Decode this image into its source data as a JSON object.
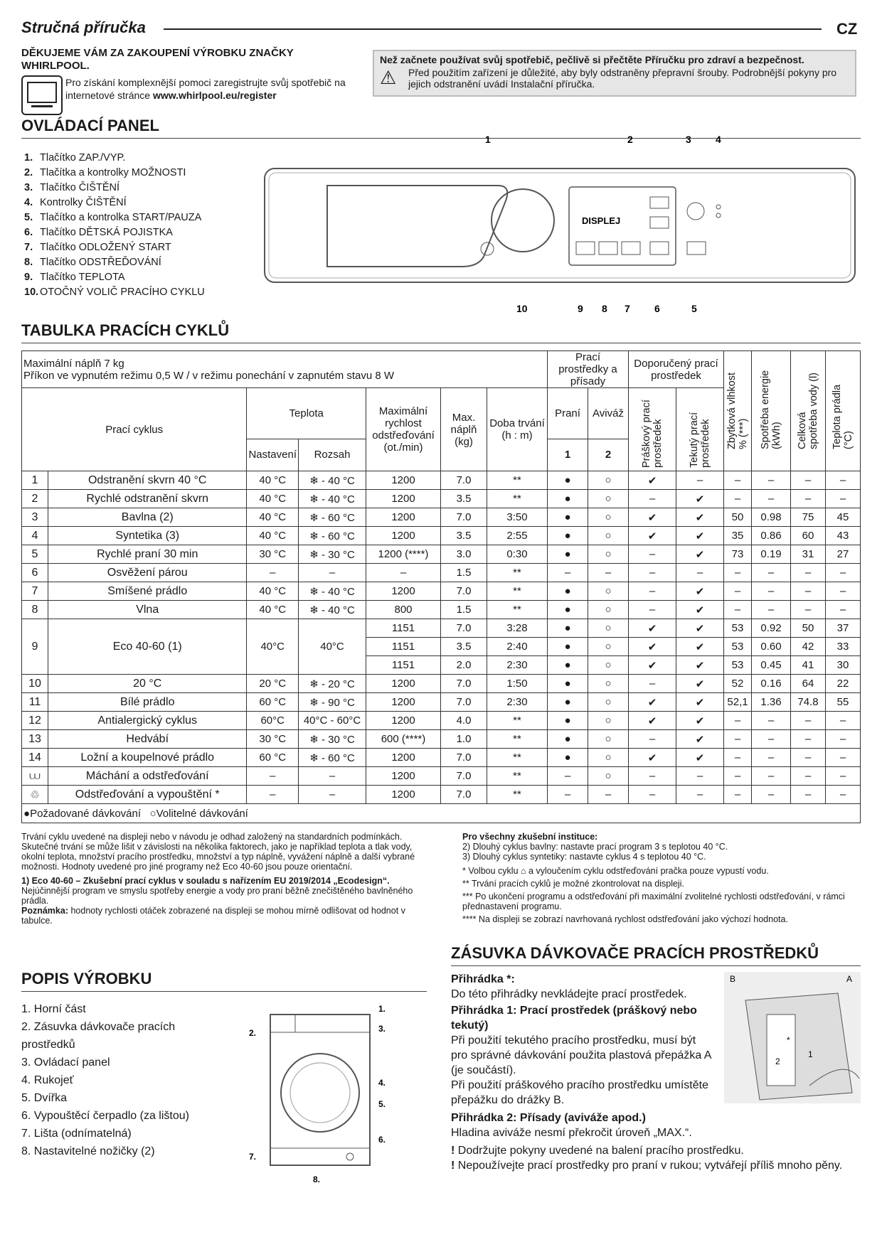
{
  "header": {
    "title": "Stručná příručka",
    "lang": "CZ"
  },
  "thanks": "DĚKUJEME VÁM ZA ZAKOUPENÍ VÝROBKU ZNAČKY WHIRLPOOL.",
  "register": {
    "text": "Pro získání komplexnější pomoci zaregistrujte svůj spotřebič na internetové stránce ",
    "link": "www.whirlpool.eu/register"
  },
  "notice": {
    "title": "Než začnete používat svůj spotřebič, pečlivě si přečtěte Příručku pro zdraví a bezpečnost.",
    "text": "Před použitím zařízení je důležité, aby byly odstraněny přepravní šrouby. Podrobnější pokyny pro jejich odstranění uvádí Instalační příručka."
  },
  "control_panel": {
    "title": "OVLÁDACÍ PANEL",
    "items": [
      "Tlačítko ZAP./VYP.",
      "Tlačítka a kontrolky MOŽNOSTI",
      "Tlačítko ČIŠTĚNÍ",
      "Kontrolky ČIŠTĚNÍ",
      "Tlačítko a kontrolka START/PAUZA",
      "Tlačítko DĚTSKÁ POJISTKA",
      "Tlačítko ODLOŽENÝ START",
      "Tlačítko ODSTŘEĎOVÁNÍ",
      "Tlačítko TEPLOTA",
      "OTOČNÝ VOLIČ PRACÍHO CYKLU"
    ],
    "display_label": "DISPLEJ",
    "callouts": [
      "1",
      "2",
      "3",
      "4",
      "10",
      "9",
      "8",
      "7",
      "6",
      "5"
    ]
  },
  "table": {
    "title": "TABULKA PRACÍCH CYKLŮ",
    "info1": "Maximální náplň 7 kg",
    "info2": "Příkon ve vypnutém režimu 0,5 W / v režimu ponechání v zapnutém stavu 8 W",
    "h_detergents": "Prací prostředky a přísady",
    "h_recommended": "Doporučený prací prostředek",
    "h_cycle": "Prací cyklus",
    "h_temp": "Teplota",
    "h_set": "Nastavení",
    "h_range": "Rozsah",
    "h_speed": "Maximální rychlost odstřeďování (ot./min)",
    "h_load": "Max. náplň (kg)",
    "h_time": "Doba trvání (h : m)",
    "h_wash": "Praní",
    "h_soft": "Aviváž",
    "h_wash_n": "1",
    "h_soft_n": "2",
    "h_powder": "Práškový prací prostředek",
    "h_liquid": "Tekutý prací prostředek",
    "h_moist": "Zbytková vlhkost % (***)",
    "h_energy": "Spotřeba energie (kWh)",
    "h_water": "Celková spotřeba vody (l)",
    "h_tempw": "Teplota prádla (°C)",
    "rows": [
      [
        "1",
        "Odstranění skvrn 40 °C",
        "40 °C",
        "❄ - 40 °C",
        "1200",
        "7.0",
        "**",
        "●",
        "○",
        "✔",
        "–",
        "–",
        "–",
        "–",
        "–"
      ],
      [
        "2",
        "Rychlé odstranění skvrn",
        "40 °C",
        "❄ - 40 °C",
        "1200",
        "3.5",
        "**",
        "●",
        "○",
        "–",
        "✔",
        "–",
        "–",
        "–",
        "–"
      ],
      [
        "3",
        "Bavlna (2)",
        "40 °C",
        "❄ - 60 °C",
        "1200",
        "7.0",
        "3:50",
        "●",
        "○",
        "✔",
        "✔",
        "50",
        "0.98",
        "75",
        "45"
      ],
      [
        "4",
        "Syntetika (3)",
        "40 °C",
        "❄ - 60 °C",
        "1200",
        "3.5",
        "2:55",
        "●",
        "○",
        "✔",
        "✔",
        "35",
        "0.86",
        "60",
        "43"
      ],
      [
        "5",
        "Rychlé praní 30 min",
        "30 °C",
        "❄ - 30 °C",
        "1200 (****)",
        "3.0",
        "0:30",
        "●",
        "○",
        "–",
        "✔",
        "73",
        "0.19",
        "31",
        "27"
      ],
      [
        "6",
        "Osvěžení párou",
        "–",
        "–",
        "–",
        "1.5",
        "**",
        "–",
        "–",
        "–",
        "–",
        "–",
        "–",
        "–",
        "–"
      ],
      [
        "7",
        "Smíšené prádlo",
        "40 °C",
        "❄ - 40 °C",
        "1200",
        "7.0",
        "**",
        "●",
        "○",
        "–",
        "✔",
        "–",
        "–",
        "–",
        "–"
      ],
      [
        "8",
        "Vlna",
        "40 °C",
        "❄ - 40 °C",
        "800",
        "1.5",
        "**",
        "●",
        "○",
        "–",
        "✔",
        "–",
        "–",
        "–",
        "–"
      ]
    ],
    "eco": {
      "num": "9",
      "name": "Eco 40-60 (1)",
      "set": "40°C",
      "range": "40°C",
      "sub": [
        [
          "1151",
          "7.0",
          "3:28",
          "●",
          "○",
          "✔",
          "✔",
          "53",
          "0.92",
          "50",
          "37"
        ],
        [
          "1151",
          "3.5",
          "2:40",
          "●",
          "○",
          "✔",
          "✔",
          "53",
          "0.60",
          "42",
          "33"
        ],
        [
          "1151",
          "2.0",
          "2:30",
          "●",
          "○",
          "✔",
          "✔",
          "53",
          "0.45",
          "41",
          "30"
        ]
      ]
    },
    "rows2": [
      [
        "10",
        "20 °C",
        "20 °C",
        "❄ - 20 °C",
        "1200",
        "7.0",
        "1:50",
        "●",
        "○",
        "–",
        "✔",
        "52",
        "0.16",
        "64",
        "22"
      ],
      [
        "11",
        "Bílé prádlo",
        "60 °C",
        "❄ - 90 °C",
        "1200",
        "7.0",
        "2:30",
        "●",
        "○",
        "✔",
        "✔",
        "52,1",
        "1.36",
        "74.8",
        "55"
      ],
      [
        "12",
        "Antialergický cyklus",
        "60°C",
        "40°C - 60°C",
        "1200",
        "4.0",
        "**",
        "●",
        "○",
        "✔",
        "✔",
        "–",
        "–",
        "–",
        "–"
      ],
      [
        "13",
        "Hedvábí",
        "30 °C",
        "❄ - 30 °C",
        "600 (****)",
        "1.0",
        "**",
        "●",
        "○",
        "–",
        "✔",
        "–",
        "–",
        "–",
        "–"
      ],
      [
        "14",
        "Ložní a koupelnové prádlo",
        "60 °C",
        "❄ - 60 °C",
        "1200",
        "7.0",
        "**",
        "●",
        "○",
        "✔",
        "✔",
        "–",
        "–",
        "–",
        "–"
      ],
      [
        "rinse-icon",
        "Máchání a odstřeďování",
        "–",
        "–",
        "1200",
        "7.0",
        "**",
        "–",
        "○",
        "–",
        "–",
        "–",
        "–",
        "–",
        "–"
      ],
      [
        "spin-drain-icon",
        "Odstřeďování a vypouštění *",
        "–",
        "–",
        "1200",
        "7.0",
        "**",
        "–",
        "–",
        "–",
        "–",
        "–",
        "–",
        "–",
        "–"
      ]
    ],
    "legend_req": "Požadované dávkování",
    "legend_opt": "Volitelné dávkování"
  },
  "notes_left": {
    "p1": "Trvání cyklu uvedené na displeji nebo v návodu je odhad založený na standardních podmínkách. Skutečné trvání se může lišit v závislosti na několika faktorech, jako je například teplota a tlak vody, okolní teplota, množství pracího prostředku, množství a typ náplně, vyvážení náplně a další vybrané možnosti. Hodnoty uvedené pro jiné programy než Eco 40-60 jsou pouze orientační.",
    "eco_b": "1) Eco 40-60 – Zkušební prací cyklus v souladu s nařízením EU 2019/2014 „Ecodesign“.",
    "eco_t": "Nejúčinnější program ve smyslu spotřeby energie a vody pro praní běžně znečištěného bavlněného prádla.",
    "note_b": "Poznámka:",
    "note_t": " hodnoty rychlosti otáček zobrazené na displeji se mohou mírně odlišovat od hodnot v tabulce."
  },
  "notes_right": {
    "title": "Pro všechny zkušební instituce:",
    "l1": "2) Dlouhý cyklus bavlny: nastavte prací program 3 s teplotou 40 °C.",
    "l2": "3) Dlouhý cyklus syntetiky: nastavte cyklus 4 s teplotou 40 °C.",
    "l3": "* Volbou cyklu ⌂ a vyloučením cyklu odstřeďování pračka pouze vypustí vodu.",
    "l4": "** Trvání pracích cyklů je možné zkontrolovat na displeji.",
    "l5": "*** Po ukončení programu a odstřeďování při maximální zvolitelné rychlosti odstřeďování, v rámci přednastavení programu.",
    "l6": "**** Na displeji se zobrazí navrhovaná rychlost odstřeďování jako výchozí hodnota."
  },
  "product": {
    "title": "POPIS VÝROBKU",
    "items": [
      "1. Horní část",
      "2. Zásuvka dávkovače pracích prostředků",
      "3. Ovládací panel",
      "4. Rukojeť",
      "5. Dvířka",
      "6. Vypouštěcí čerpadlo (za lištou)",
      "7. Lišta (odnímatelná)",
      "8. Nastavitelné nožičky (2)"
    ],
    "callouts": [
      "1.",
      "2.",
      "3.",
      "4.",
      "5.",
      "6.",
      "7.",
      "8."
    ]
  },
  "drawer": {
    "title": "ZÁSUVKA DÁVKOVAČE PRACÍCH PROSTŘEDKŮ",
    "c1_b": "Přihrádka *:",
    "c1_t": "Do této přihrádky nevkládejte prací prostředek.",
    "c2_b": "Přihrádka 1: Prací prostředek (práškový nebo tekutý)",
    "c2_t1": "Při použití tekutého pracího prostředku, musí být pro správné dávkování použita plastová přepážka A (je součástí).",
    "c2_t2": "Při použití práškového pracího prostředku umístěte přepážku do drážky B.",
    "c3_b": "Přihrádka 2: Přísady (aviváže apod.)",
    "c3_t": "Hladina aviváže nesmí překročit úroveň „MAX.“.",
    "w1": "Dodržujte pokyny uvedené na balení pracího prostředku.",
    "w2": "Nepoužívejte prací prostředky pro praní v rukou; vytvářejí příliš mnoho pěny.",
    "img_labels": [
      "B",
      "A",
      "*",
      "1",
      "2"
    ]
  }
}
